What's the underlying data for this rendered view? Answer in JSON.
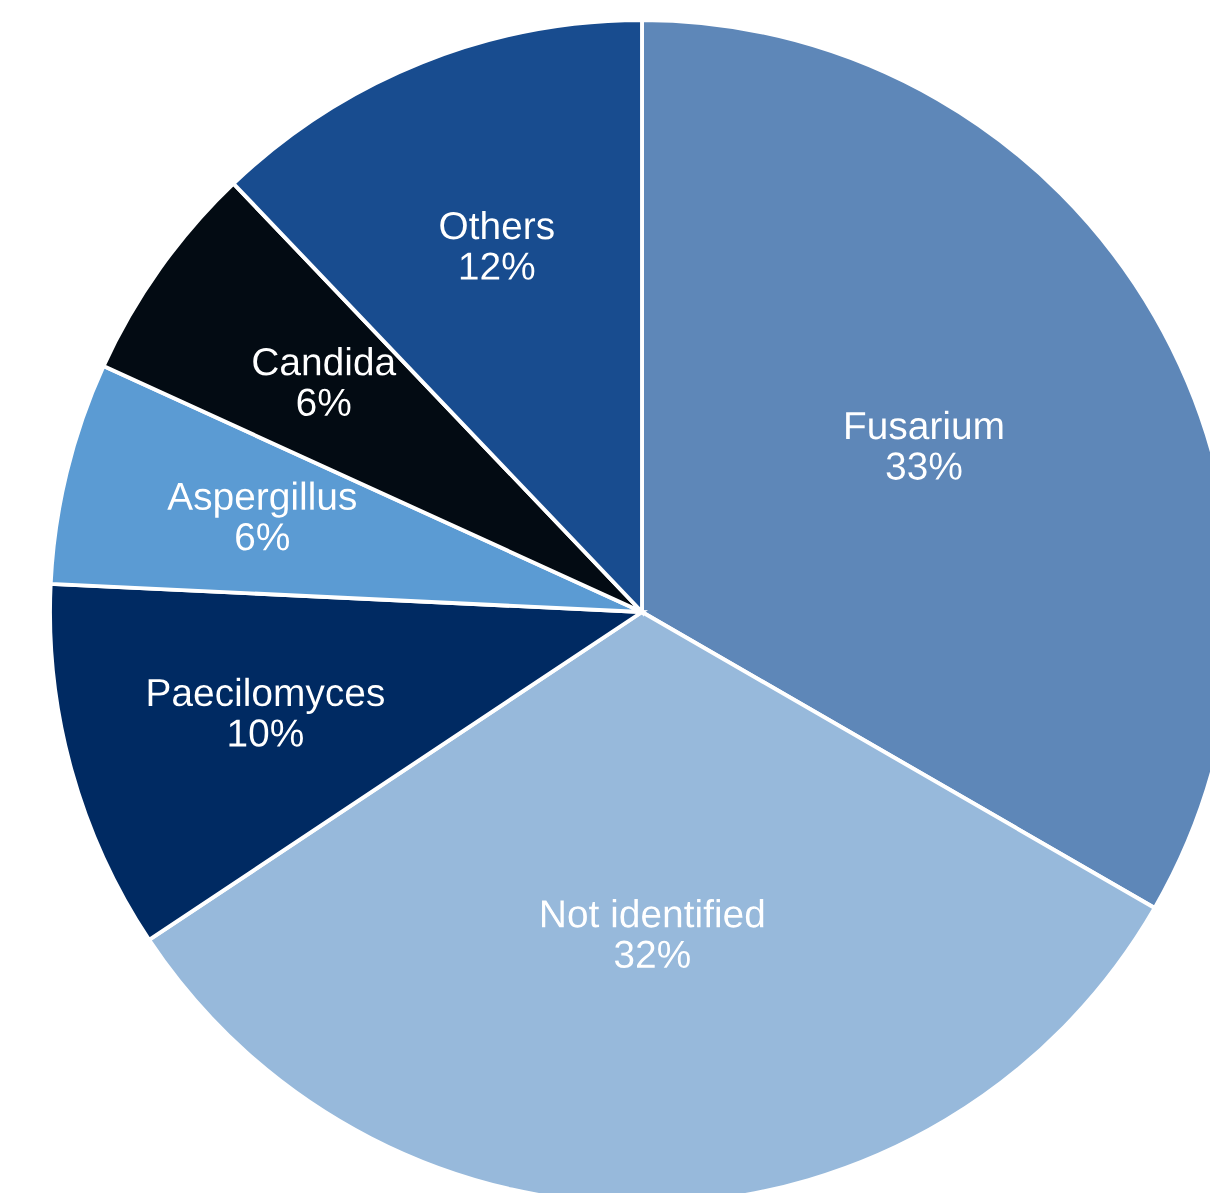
{
  "chart_data": {
    "type": "pie",
    "categories": [
      "Fusarium",
      "Not identified",
      "Paecilomyces",
      "Aspergillus",
      "Candida",
      "Others"
    ],
    "values": [
      33,
      32,
      10,
      6,
      6,
      12
    ],
    "value_labels": [
      "33%",
      "32%",
      "10%",
      "6%",
      "6%",
      "12%"
    ],
    "colors": [
      "#5e87b8",
      "#97b9db",
      "#002a62",
      "#5b9bd3",
      "#030b13",
      "#184c8f"
    ]
  }
}
